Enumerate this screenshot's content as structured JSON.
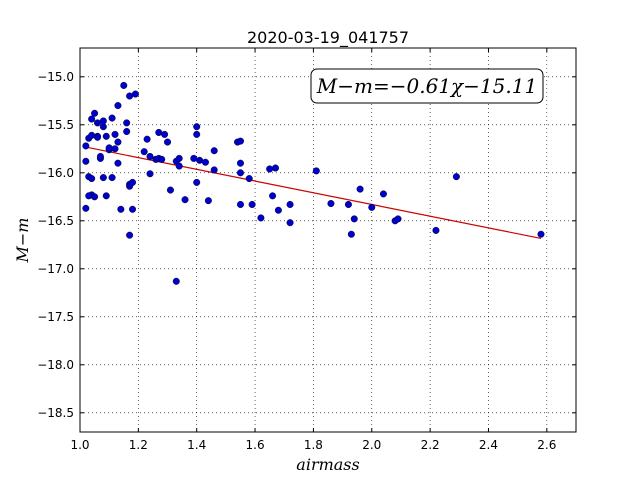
{
  "chart_data": {
    "type": "scatter",
    "title": "2020-03-19_041757",
    "xlabel": "airmass",
    "ylabel": "M−m",
    "xlim": [
      1.0,
      2.7
    ],
    "ylim": [
      -18.7,
      -14.7
    ],
    "y_inverted": true,
    "grid": true,
    "x_ticks": [
      1.0,
      1.2,
      1.4,
      1.6,
      1.8,
      2.0,
      2.2,
      2.4,
      2.6
    ],
    "x_tick_labels": [
      "1.0",
      "1.2",
      "1.4",
      "1.6",
      "1.8",
      "2.0",
      "2.2",
      "2.4",
      "2.6"
    ],
    "y_ticks": [
      -15.0,
      -15.5,
      -16.0,
      -16.5,
      -17.0,
      -17.5,
      -18.0,
      -18.5
    ],
    "y_tick_labels": [
      "−15.0",
      "−15.5",
      "−16.0",
      "−16.5",
      "−17.0",
      "−17.5",
      "−18.0",
      "−18.5"
    ],
    "annotation": "M−m=−0.61χ−15.11",
    "annotation_position": "top-right",
    "series": [
      {
        "kind": "points",
        "color": "#0000cc",
        "x": [
          1.02,
          1.02,
          1.03,
          1.03,
          1.04,
          1.04,
          1.04,
          1.05,
          1.05,
          1.06,
          1.06,
          1.07,
          1.07,
          1.08,
          1.08,
          1.09,
          1.09,
          1.1,
          1.1,
          1.11,
          1.11,
          1.12,
          1.12,
          1.13,
          1.13,
          1.14,
          1.15,
          1.16,
          1.16,
          1.17,
          1.17,
          1.17,
          1.18,
          1.19,
          1.02,
          1.03,
          1.04,
          1.06,
          1.08,
          1.13,
          1.17,
          1.18,
          1.22,
          1.23,
          1.24,
          1.24,
          1.26,
          1.27,
          1.27,
          1.28,
          1.29,
          1.3,
          1.31,
          1.33,
          1.34,
          1.34,
          1.36,
          1.39,
          1.4,
          1.4,
          1.4,
          1.41,
          1.43,
          1.44,
          1.46,
          1.46,
          1.54,
          1.55,
          1.55,
          1.55,
          1.55,
          1.58,
          1.59,
          1.62,
          1.65,
          1.66,
          1.67,
          1.68,
          1.72,
          1.72,
          1.81,
          1.86,
          1.92,
          1.93,
          1.94,
          1.96,
          2.0,
          2.04,
          2.08,
          2.09,
          2.22,
          2.29,
          2.58,
          1.33
        ],
        "y": [
          -15.88,
          -16.37,
          -15.64,
          -16.04,
          -15.44,
          -16.06,
          -16.23,
          -15.38,
          -16.25,
          -15.62,
          -15.48,
          -15.85,
          -15.83,
          -16.05,
          -15.52,
          -15.62,
          -16.24,
          -15.76,
          -15.74,
          -15.43,
          -16.05,
          -15.6,
          -15.75,
          -15.3,
          -15.9,
          -16.38,
          -15.09,
          -15.48,
          -15.57,
          -16.12,
          -16.14,
          -16.65,
          -16.38,
          -15.18,
          -15.72,
          -16.24,
          -15.61,
          -15.63,
          -15.46,
          -15.68,
          -15.2,
          -16.1,
          -15.78,
          -15.65,
          -15.83,
          -16.01,
          -15.86,
          -15.58,
          -15.85,
          -15.86,
          -15.6,
          -15.68,
          -16.18,
          -15.88,
          -15.93,
          -15.85,
          -16.28,
          -15.85,
          -15.52,
          -15.6,
          -16.1,
          -15.87,
          -15.89,
          -16.29,
          -15.77,
          -15.97,
          -15.68,
          -15.9,
          -16.0,
          -15.67,
          -16.33,
          -16.06,
          -16.33,
          -16.47,
          -15.96,
          -16.24,
          -15.95,
          -16.39,
          -16.33,
          -16.52,
          -15.98,
          -16.32,
          -16.33,
          -16.64,
          -16.48,
          -16.17,
          -16.36,
          -16.22,
          -16.5,
          -16.48,
          -16.6,
          -16.04,
          -16.64,
          -17.13
        ]
      }
    ],
    "fit": {
      "kind": "line",
      "color": "#cc0000",
      "slope": -0.61,
      "intercept": -15.11,
      "x_range": [
        1.02,
        2.58
      ]
    }
  }
}
